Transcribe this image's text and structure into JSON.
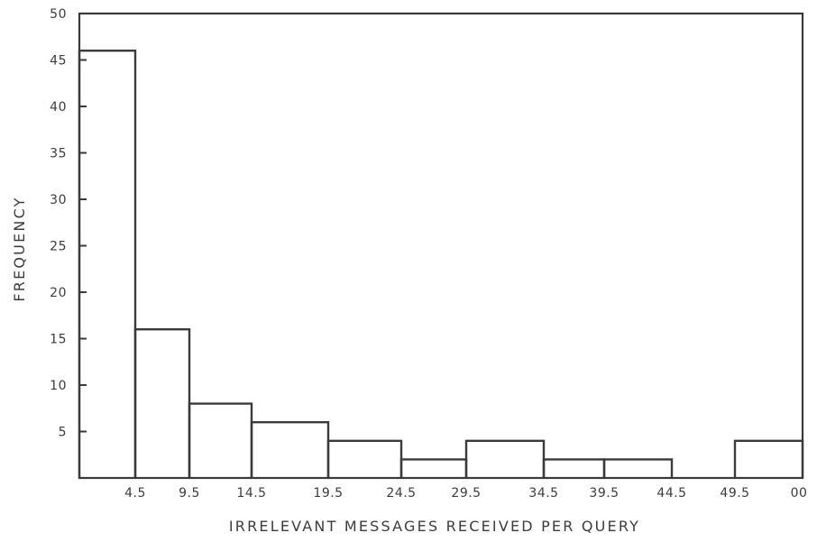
{
  "chart_data": {
    "type": "bar",
    "title": "",
    "xlabel": "IRRELEVANT MESSAGES RECEIVED PER QUERY",
    "ylabel": "FREQUENCY",
    "ylim": [
      0,
      50
    ],
    "yticks": [
      "5",
      "10",
      "15",
      "20",
      "25",
      "30",
      "35",
      "40",
      "45",
      "50"
    ],
    "xtick_labels": [
      "4.5",
      "9.5",
      "14.5",
      "19.5",
      "24.5",
      "29.5",
      "34.5",
      "39.5",
      "44.5",
      "49.5",
      "00"
    ],
    "grid": false,
    "legend": "none",
    "bins": [
      {
        "range": "0–4.5",
        "value": 46
      },
      {
        "range": "4.5–9.5",
        "value": 16
      },
      {
        "range": "9.5–14.5",
        "value": 8
      },
      {
        "range": "14.5–19.5",
        "value": 6
      },
      {
        "range": "19.5–24.5",
        "value": 4
      },
      {
        "range": "24.5–29.5",
        "value": 2
      },
      {
        "range": "29.5–34.5",
        "value": 4
      },
      {
        "range": "34.5–39.5",
        "value": 2
      },
      {
        "range": "39.5–44.5",
        "value": 2
      },
      {
        "range": "44.5–49.5",
        "value": 0
      },
      {
        "range": "49.5–00",
        "value": 4
      }
    ]
  }
}
